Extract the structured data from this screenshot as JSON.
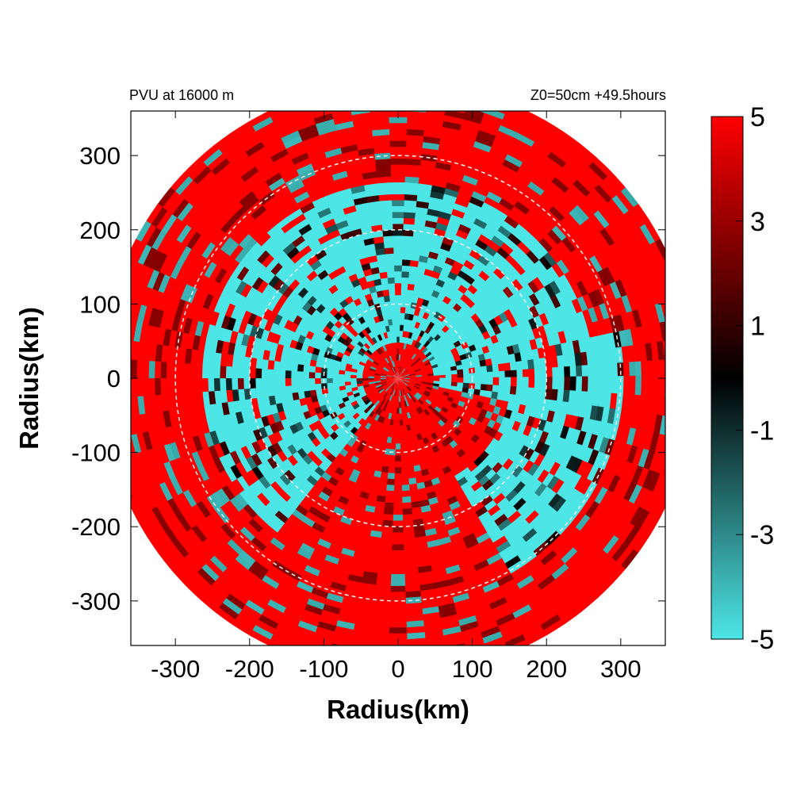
{
  "chart_data": {
    "type": "heatmap",
    "title_left": "PVU at 16000 m",
    "title_right": "Z0=50cm  +49.5hours",
    "xlabel": "Radius(km)",
    "ylabel": "Radius(km)",
    "xlim": [
      -360,
      360
    ],
    "ylim": [
      -360,
      360
    ],
    "xticks": [
      -300,
      -200,
      -100,
      0,
      100,
      200,
      300
    ],
    "yticks": [
      300,
      200,
      100,
      0,
      -100,
      -200,
      -300
    ],
    "domain_radius_km": 400,
    "reference_circles_km": [
      100,
      200,
      300
    ],
    "colorbar": {
      "range": [
        -5,
        5
      ],
      "ticks": [
        5,
        3,
        1,
        -1,
        -3,
        -5
      ],
      "colors": {
        "low": "#4de6e6",
        "mid": "#000000",
        "high": "#ff0000"
      }
    },
    "field_regions": [
      {
        "name": "negative PVU (cyan)",
        "value": -5,
        "r_min_km": 50,
        "r_max_km": 260,
        "theta_center_deg": 110,
        "theta_width_deg": 120
      },
      {
        "name": "negative PVU (cyan)",
        "value": -5,
        "r_min_km": 150,
        "r_max_km": 300,
        "theta_center_deg": -25,
        "theta_width_deg": 35
      },
      {
        "name": "positive PVU (red)",
        "value": 5,
        "r_min_km": 0,
        "r_max_km": 400,
        "theta_center_deg": -110,
        "theta_width_deg": 200
      }
    ]
  }
}
